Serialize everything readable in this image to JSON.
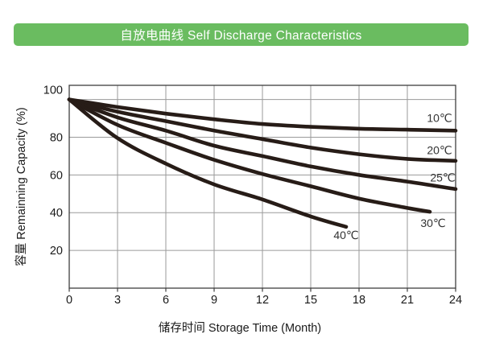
{
  "header": {
    "title": "自放电曲线 Self Discharge Characteristics",
    "bg_color": "#6abc60",
    "text_color": "#ffffff"
  },
  "chart_data": {
    "type": "line",
    "title": "自放电曲线 Self Discharge Characteristics",
    "xlabel": "储存时间 Storage Time (Month)",
    "ylabel": "容量 Remainning Capacity (%)",
    "xlim": [
      0,
      24
    ],
    "ylim": [
      0,
      107.5
    ],
    "x_ticks": [
      0,
      3,
      6,
      9,
      12,
      15,
      18,
      21,
      24
    ],
    "y_ticks": [
      20,
      40,
      60,
      80,
      100
    ],
    "grid": true,
    "legend_position": "inline-labels-near-curve-ends",
    "colors": {
      "curve": "#271c17",
      "grid": "#9a9a9a",
      "axis": "#3f3f3f",
      "tick_text": "#1a1a1a",
      "label_text": "#333333"
    },
    "series": [
      {
        "name": "10℃",
        "temperature_c": 10,
        "points": [
          [
            0,
            100
          ],
          [
            3,
            96
          ],
          [
            6,
            92.5
          ],
          [
            9,
            89.5
          ],
          [
            12,
            87
          ],
          [
            15,
            85.5
          ],
          [
            18,
            84.5
          ],
          [
            21,
            84
          ],
          [
            24,
            83.5
          ]
        ],
        "label_at": [
          23,
          88
        ]
      },
      {
        "name": "20℃",
        "temperature_c": 20,
        "points": [
          [
            0,
            100
          ],
          [
            3,
            93.5
          ],
          [
            6,
            88.5
          ],
          [
            9,
            83.5
          ],
          [
            12,
            79
          ],
          [
            15,
            74.5
          ],
          [
            18,
            71
          ],
          [
            21,
            68.5
          ],
          [
            24,
            67.5
          ]
        ],
        "label_at": [
          23,
          71
        ]
      },
      {
        "name": "25℃",
        "temperature_c": 25,
        "points": [
          [
            0,
            100
          ],
          [
            3,
            90.5
          ],
          [
            6,
            83.5
          ],
          [
            9,
            75.5
          ],
          [
            12,
            70
          ],
          [
            15,
            64.5
          ],
          [
            18,
            60
          ],
          [
            21,
            56.5
          ],
          [
            24,
            52.5
          ]
        ],
        "label_at": [
          23.2,
          56.5
        ]
      },
      {
        "name": "30℃",
        "temperature_c": 30,
        "points": [
          [
            0,
            100
          ],
          [
            3,
            86.5
          ],
          [
            6,
            77
          ],
          [
            9,
            68
          ],
          [
            12,
            60.5
          ],
          [
            15,
            54
          ],
          [
            18,
            47.5
          ],
          [
            21,
            42.5
          ],
          [
            22.4,
            40.5
          ]
        ],
        "label_at": [
          22.6,
          32.5
        ]
      },
      {
        "name": "40℃",
        "temperature_c": 40,
        "points": [
          [
            0,
            100
          ],
          [
            3,
            79.5
          ],
          [
            6,
            66
          ],
          [
            9,
            55
          ],
          [
            12,
            47
          ],
          [
            15,
            38
          ],
          [
            17.2,
            32.5
          ]
        ],
        "label_at": [
          17.2,
          26
        ]
      }
    ]
  }
}
